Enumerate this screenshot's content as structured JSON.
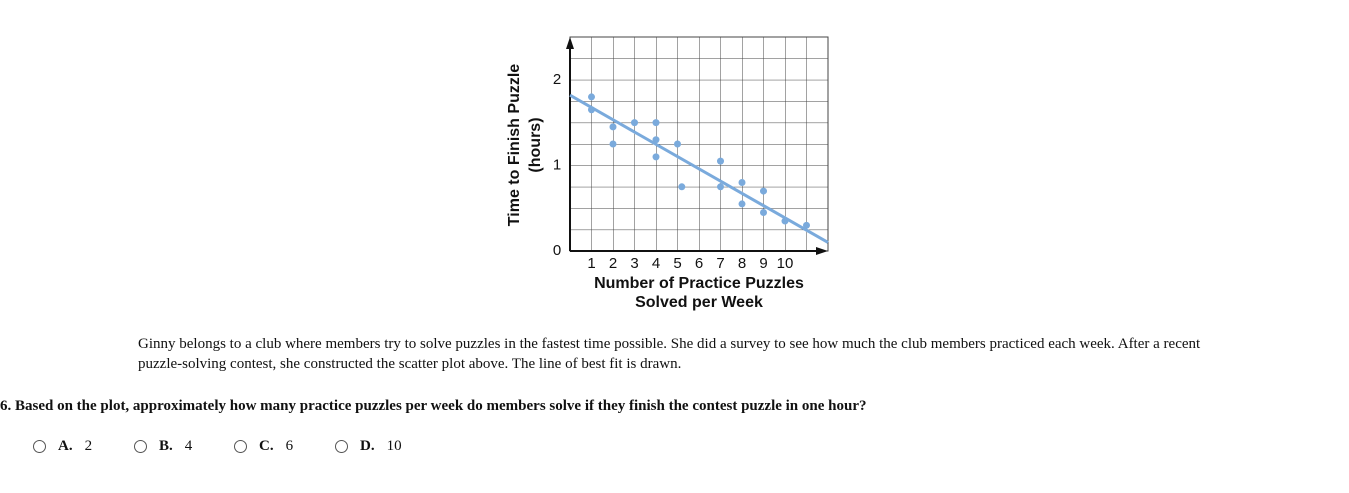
{
  "chart_data": {
    "type": "scatter",
    "xlabel": [
      "Number of Practice Puzzles",
      "Solved per Week"
    ],
    "ylabel": [
      "Time to Finish Puzzle",
      "(hours)"
    ],
    "x": [
      1,
      1,
      2,
      2,
      3,
      4,
      4,
      4,
      5,
      5.2,
      7,
      7,
      8,
      8,
      9,
      9,
      10,
      11
    ],
    "series": [
      {
        "color": "#7aaadc",
        "values": [
          1.8,
          1.65,
          1.45,
          1.25,
          1.5,
          1.5,
          1.3,
          1.1,
          1.25,
          0.75,
          1.05,
          0.75,
          0.8,
          0.55,
          0.7,
          0.45,
          0.35,
          0.3
        ]
      }
    ],
    "trend_line": {
      "x": [
        0,
        12
      ],
      "y": [
        1.82,
        0.1
      ],
      "color": "#7aaadc"
    },
    "xlim": [
      0,
      12
    ],
    "ylim": [
      0,
      2.5
    ],
    "xticks": [
      1,
      2,
      3,
      4,
      5,
      6,
      7,
      8,
      9,
      10
    ],
    "yticks": [
      0,
      1,
      2
    ]
  },
  "passage": "Ginny belongs to a club where members try to solve puzzles in the fastest time possible. She did a survey to see how much the club members practiced each week. After a recent puzzle-solving contest, she constructed the scatter plot above. The line of best fit is drawn.",
  "question": "6. Based on the plot, approximately how many practice puzzles per week do members solve if they finish the contest puzzle in one hour?",
  "options": [
    {
      "letter": "A.",
      "text": "2"
    },
    {
      "letter": "B.",
      "text": "4"
    },
    {
      "letter": "C.",
      "text": "6"
    },
    {
      "letter": "D.",
      "text": "10"
    }
  ]
}
